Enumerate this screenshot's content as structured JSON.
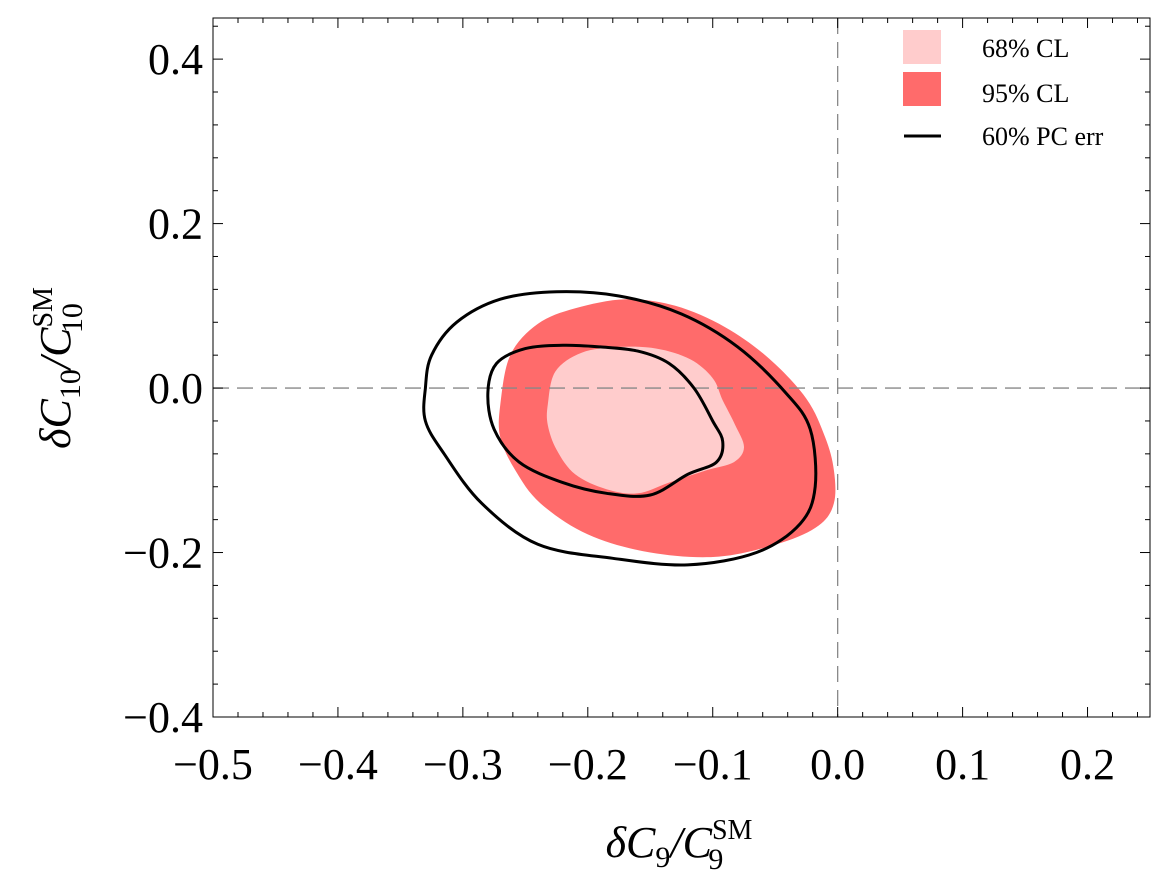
{
  "chart_data": {
    "type": "contour",
    "xlabel": {
      "main": "δC",
      "sub1": "9",
      "mid": "/C",
      "sup": "SM",
      "sub2": "9"
    },
    "ylabel": {
      "main": "δC",
      "sub1": "10",
      "mid": "/C",
      "sup": "SM",
      "sub2": "10"
    },
    "xlim": [
      -0.5,
      0.25
    ],
    "ylim": [
      -0.4,
      0.45
    ],
    "x_ticks": [
      -0.5,
      -0.4,
      -0.3,
      -0.2,
      -0.1,
      0.0,
      0.1,
      0.2
    ],
    "x_tick_labels": [
      "−0.5",
      "−0.4",
      "−0.3",
      "−0.2",
      "−0.1",
      "0.0",
      "0.1",
      "0.2"
    ],
    "y_ticks": [
      -0.4,
      -0.2,
      0.0,
      0.2,
      0.4
    ],
    "y_tick_labels": [
      "−0.4",
      "−0.2",
      "0.0",
      "0.2",
      "0.4"
    ],
    "reference_lines": {
      "x": 0.0,
      "y": 0.0,
      "style": "dashed"
    },
    "legend": {
      "placement": "top-right"
    },
    "series": [
      {
        "name": "95% CL",
        "kind": "filled",
        "color": "#ff6b6b",
        "points": [
          [
            -0.27,
            -0.02
          ],
          [
            -0.262,
            0.04
          ],
          [
            -0.24,
            0.078
          ],
          [
            -0.21,
            0.097
          ],
          [
            -0.17,
            0.108
          ],
          [
            -0.13,
            0.1
          ],
          [
            -0.09,
            0.074
          ],
          [
            -0.055,
            0.036
          ],
          [
            -0.025,
            -0.013
          ],
          [
            -0.01,
            -0.06
          ],
          [
            -0.003,
            -0.1
          ],
          [
            -0.003,
            -0.14
          ],
          [
            -0.015,
            -0.167
          ],
          [
            -0.045,
            -0.188
          ],
          [
            -0.095,
            -0.205
          ],
          [
            -0.15,
            -0.2
          ],
          [
            -0.2,
            -0.178
          ],
          [
            -0.238,
            -0.14
          ],
          [
            -0.258,
            -0.1
          ],
          [
            -0.27,
            -0.06
          ]
        ]
      },
      {
        "name": "68% CL",
        "kind": "filled",
        "color": "#ffcccc",
        "points": [
          [
            -0.232,
            -0.02
          ],
          [
            -0.226,
            0.02
          ],
          [
            -0.205,
            0.043
          ],
          [
            -0.175,
            0.05
          ],
          [
            -0.145,
            0.048
          ],
          [
            -0.118,
            0.035
          ],
          [
            -0.1,
            0.012
          ],
          [
            -0.092,
            -0.015
          ],
          [
            -0.082,
            -0.045
          ],
          [
            -0.075,
            -0.072
          ],
          [
            -0.083,
            -0.09
          ],
          [
            -0.105,
            -0.1
          ],
          [
            -0.135,
            -0.115
          ],
          [
            -0.16,
            -0.128
          ],
          [
            -0.185,
            -0.123
          ],
          [
            -0.21,
            -0.105
          ],
          [
            -0.225,
            -0.075
          ],
          [
            -0.232,
            -0.045
          ]
        ]
      },
      {
        "name": "60% PC err",
        "kind": "line",
        "color": "#000000",
        "points": [
          [
            -0.33,
            0.0
          ],
          [
            -0.325,
            0.04
          ],
          [
            -0.305,
            0.08
          ],
          [
            -0.27,
            0.108
          ],
          [
            -0.225,
            0.117
          ],
          [
            -0.175,
            0.112
          ],
          [
            -0.125,
            0.09
          ],
          [
            -0.08,
            0.05
          ],
          [
            -0.042,
            -0.005
          ],
          [
            -0.022,
            -0.05
          ],
          [
            -0.018,
            -0.12
          ],
          [
            -0.03,
            -0.165
          ],
          [
            -0.065,
            -0.2
          ],
          [
            -0.12,
            -0.215
          ],
          [
            -0.18,
            -0.207
          ],
          [
            -0.24,
            -0.19
          ],
          [
            -0.285,
            -0.14
          ],
          [
            -0.315,
            -0.08
          ],
          [
            -0.33,
            -0.04
          ]
        ]
      },
      {
        "name": "60% PC err inner",
        "kind": "line",
        "color": "#000000",
        "points": [
          [
            -0.28,
            -0.005
          ],
          [
            -0.273,
            0.03
          ],
          [
            -0.25,
            0.048
          ],
          [
            -0.22,
            0.052
          ],
          [
            -0.19,
            0.05
          ],
          [
            -0.16,
            0.045
          ],
          [
            -0.135,
            0.03
          ],
          [
            -0.115,
            0.0
          ],
          [
            -0.1,
            -0.04
          ],
          [
            -0.092,
            -0.065
          ],
          [
            -0.097,
            -0.09
          ],
          [
            -0.12,
            -0.105
          ],
          [
            -0.15,
            -0.13
          ],
          [
            -0.185,
            -0.128
          ],
          [
            -0.22,
            -0.115
          ],
          [
            -0.255,
            -0.09
          ],
          [
            -0.275,
            -0.05
          ]
        ]
      }
    ]
  }
}
